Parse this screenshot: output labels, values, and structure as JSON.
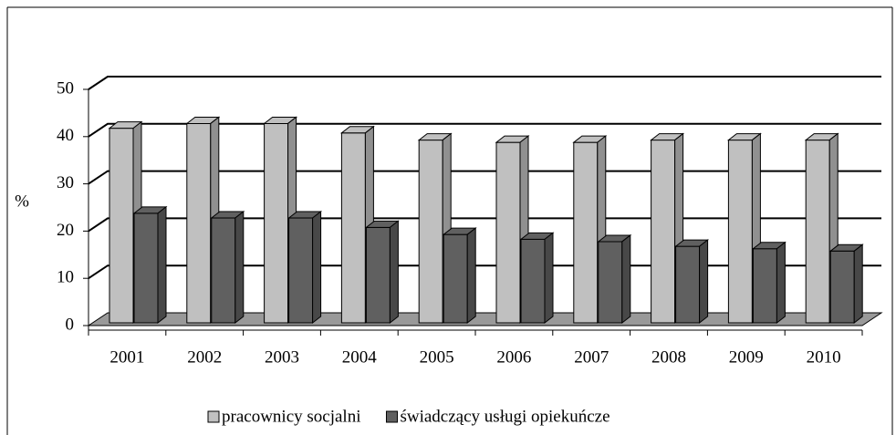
{
  "chart_data": {
    "type": "bar3d",
    "y_label": "%",
    "categories": [
      "2001",
      "2002",
      "2003",
      "2004",
      "2005",
      "2006",
      "2007",
      "2008",
      "2009",
      "2010"
    ],
    "series": [
      {
        "name": "pracownicy socjalni",
        "color": "#c0c0c0",
        "values": [
          41,
          42,
          42,
          40,
          38.5,
          38,
          38,
          38.5,
          38.5,
          38.5
        ]
      },
      {
        "name": "świadczący usługi opiekuńcze",
        "color": "#606060",
        "values": [
          23,
          22,
          22,
          20,
          18.5,
          17.5,
          17,
          16,
          15.5,
          15
        ]
      }
    ],
    "ylim": [
      0,
      50
    ],
    "yticks": [
      0,
      10,
      20,
      30,
      40,
      50
    ],
    "grid": true,
    "legend": "bottom"
  }
}
